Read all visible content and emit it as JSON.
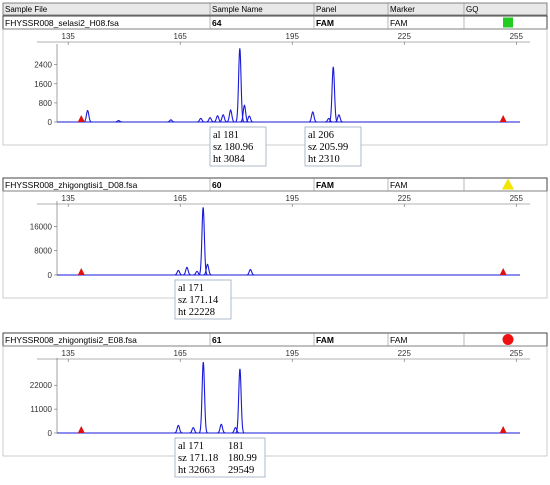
{
  "header": {
    "columns": [
      "Sample File",
      "Sample Name",
      "Panel",
      "Marker",
      "GQ"
    ]
  },
  "chart_data": [
    {
      "type": "line",
      "sample_file": "FHYSSR008_selasi2_H08.fsa",
      "sample_name": "64",
      "panel": "FAM",
      "marker": "FAM",
      "gq": {
        "shape": "square",
        "color": "#22cc22"
      },
      "color": "#1a1ad8",
      "xlim": [
        132,
        256
      ],
      "xticks": [
        135,
        165,
        195,
        225,
        255
      ],
      "ylim": [
        0,
        3100
      ],
      "yticks": [
        0,
        800,
        1600,
        2400
      ],
      "x": [
        140.2,
        148.5,
        162.5,
        170.5,
        173,
        175,
        176.5,
        178.5,
        180.96,
        182.2,
        183.5,
        200.5,
        204.8,
        205.99,
        207.5
      ],
      "values": [
        480,
        60,
        90,
        150,
        180,
        260,
        300,
        500,
        3084,
        700,
        250,
        420,
        150,
        2310,
        300
      ],
      "size_markers": {
        "x": [
          138.5,
          251.5
        ],
        "color": "#e01010"
      },
      "callouts": [
        [
          [
            "al 181"
          ],
          [
            "sz 180.96"
          ],
          [
            "ht 3084"
          ]
        ],
        [
          [
            "al 206"
          ],
          [
            "sz 205.99"
          ],
          [
            "ht 2310"
          ]
        ]
      ]
    },
    {
      "type": "line",
      "sample_file": "FHYSSR008_zhigongtisi1_D08.fsa",
      "sample_name": "60",
      "panel": "FAM",
      "marker": "FAM",
      "gq": {
        "shape": "triangle",
        "color": "#f2e600"
      },
      "color": "#1a1ad8",
      "xlim": [
        132,
        256
      ],
      "xticks": [
        135,
        165,
        195,
        225,
        255
      ],
      "ylim": [
        0,
        23000
      ],
      "yticks": [
        0,
        8000,
        16000
      ],
      "x": [
        164.5,
        166.8,
        169.5,
        171.14,
        172.3,
        183.8
      ],
      "values": [
        1500,
        2500,
        1200,
        22228,
        3500,
        1800
      ],
      "size_markers": {
        "x": [
          138.5,
          251.5
        ],
        "color": "#e01010"
      },
      "callouts": [
        [
          [
            "al 171"
          ],
          [
            "sz 171.14"
          ],
          [
            "ht 22228"
          ]
        ]
      ]
    },
    {
      "type": "line",
      "sample_file": "FHYSSR008_zhigongtisi2_E08.fsa",
      "sample_name": "61",
      "panel": "FAM",
      "marker": "FAM",
      "gq": {
        "shape": "circle",
        "color": "#ee1111"
      },
      "color": "#1a1ad8",
      "xlim": [
        132,
        256
      ],
      "xticks": [
        135,
        165,
        195,
        225,
        255
      ],
      "ylim": [
        0,
        32700
      ],
      "yticks": [
        0,
        11000,
        22000
      ],
      "x": [
        164.5,
        168.5,
        171.18,
        176,
        179.8,
        180.99
      ],
      "values": [
        3500,
        2500,
        32663,
        4000,
        2500,
        29549
      ],
      "size_markers": {
        "x": [
          138.5,
          251.5
        ],
        "color": "#e01010"
      },
      "callouts": [
        [
          [
            "al 171",
            "181"
          ],
          [
            "sz 171.18",
            "180.99"
          ],
          [
            "ht 32663",
            "29549"
          ]
        ]
      ]
    }
  ]
}
